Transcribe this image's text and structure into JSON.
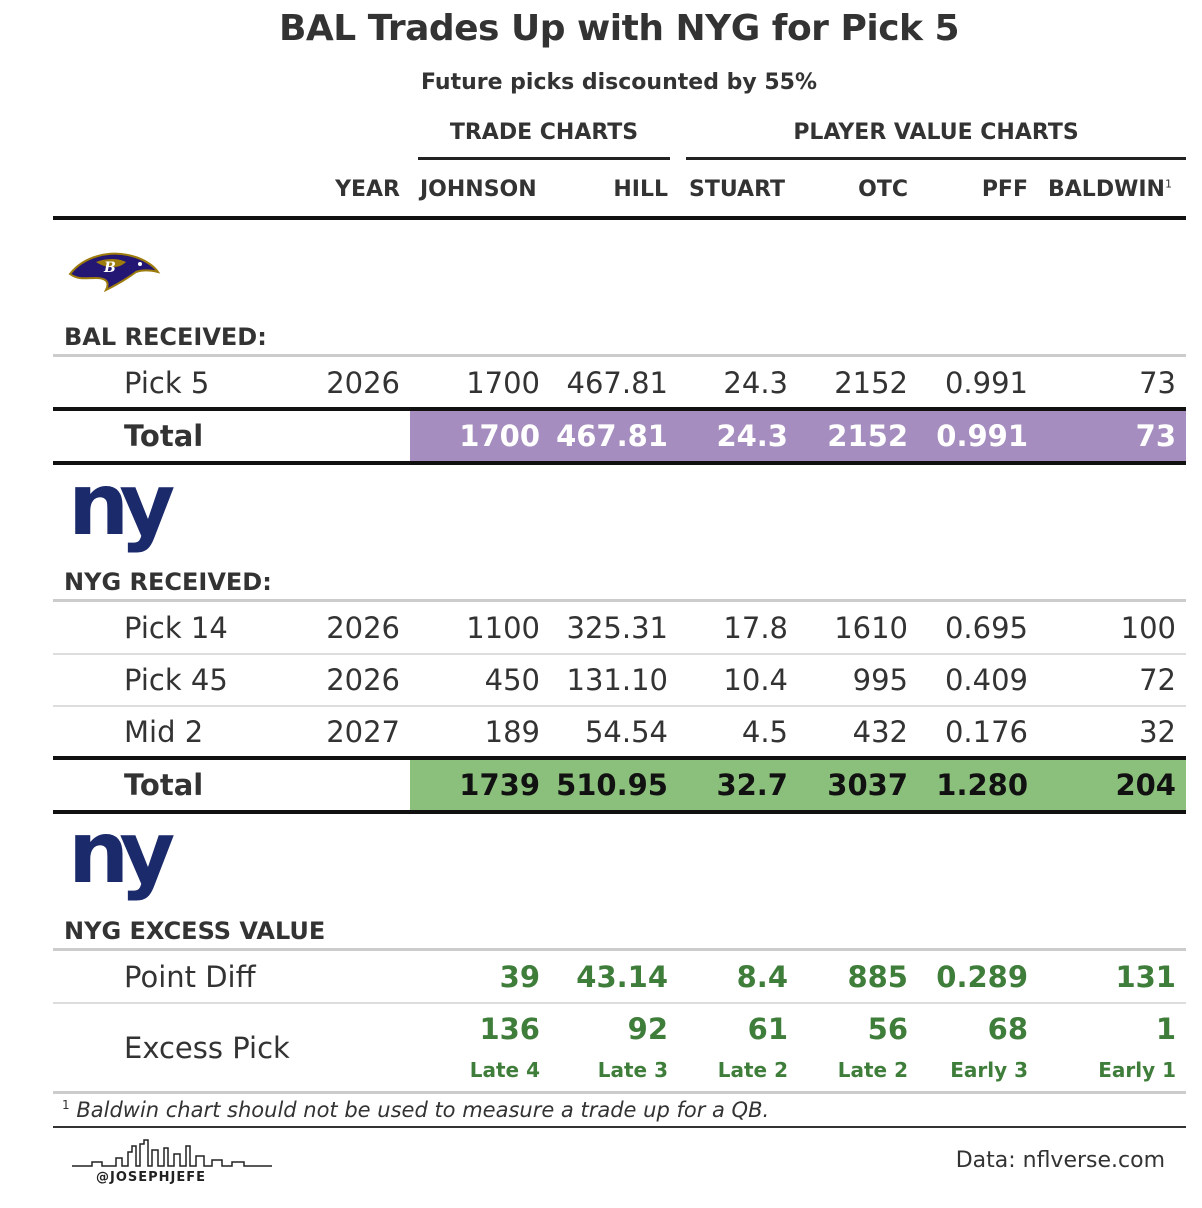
{
  "title": "BAL Trades Up with NYG for Pick 5",
  "subtitle": "Future picks discounted by 55%",
  "spanners": {
    "trade": "TRADE CHARTS",
    "player": "PLAYER VALUE CHARTS"
  },
  "columns": {
    "year": "YEAR",
    "johnson": "JOHNSON",
    "hill": "HILL",
    "stuart": "STUART",
    "otc": "OTC",
    "pff": "PFF",
    "baldwin": "BALDWIN",
    "baldwin_note": "1"
  },
  "bal": {
    "logo": "ravens-logo",
    "label": "BAL RECEIVED:",
    "rows": [
      {
        "pick": "Pick 5",
        "year": "2026",
        "johnson": "1700",
        "hill": "467.81",
        "stuart": "24.3",
        "otc": "2152",
        "pff": "0.991",
        "baldwin": "73"
      }
    ],
    "total": {
      "label": "Total",
      "johnson": "1700",
      "hill": "467.81",
      "stuart": "24.3",
      "otc": "2152",
      "pff": "0.991",
      "baldwin": "73"
    }
  },
  "nyg": {
    "logo": "giants-logo",
    "logo_text": "ny",
    "label": "NYG RECEIVED:",
    "rows": [
      {
        "pick": "Pick 14",
        "year": "2026",
        "johnson": "1100",
        "hill": "325.31",
        "stuart": "17.8",
        "otc": "1610",
        "pff": "0.695",
        "baldwin": "100"
      },
      {
        "pick": "Pick 45",
        "year": "2026",
        "johnson": "450",
        "hill": "131.10",
        "stuart": "10.4",
        "otc": "995",
        "pff": "0.409",
        "baldwin": "72"
      },
      {
        "pick": "Mid 2",
        "year": "2027",
        "johnson": "189",
        "hill": "54.54",
        "stuart": "4.5",
        "otc": "432",
        "pff": "0.176",
        "baldwin": "32"
      }
    ],
    "total": {
      "label": "Total",
      "johnson": "1739",
      "hill": "510.95",
      "stuart": "32.7",
      "otc": "3037",
      "pff": "1.280",
      "baldwin": "204"
    }
  },
  "excess": {
    "logo_text": "ny",
    "label": "NYG EXCESS VALUE",
    "point_diff": {
      "label": "Point Diff",
      "johnson": "39",
      "hill": "43.14",
      "stuart": "8.4",
      "otc": "885",
      "pff": "0.289",
      "baldwin": "131"
    },
    "excess_pick": {
      "label": "Excess Pick",
      "johnson": "136",
      "hill": "92",
      "stuart": "61",
      "otc": "56",
      "pff": "68",
      "baldwin": "1",
      "johnson_round": "Late 4",
      "hill_round": "Late 3",
      "stuart_round": "Late 2",
      "otc_round": "Late 2",
      "pff_round": "Early 3",
      "baldwin_round": "Early 1"
    }
  },
  "footnote": {
    "mark": "1",
    "text": "Baldwin chart should not be used to measure a trade up for a QB."
  },
  "source": "Data: nflverse.com",
  "handle": "@JOSEPHJEFE",
  "colors": {
    "bal_total": "#a58ebf",
    "nyg_total": "#8bc07c",
    "excess_green": "#3f7d3a",
    "giants_blue": "#1b2a6b"
  }
}
